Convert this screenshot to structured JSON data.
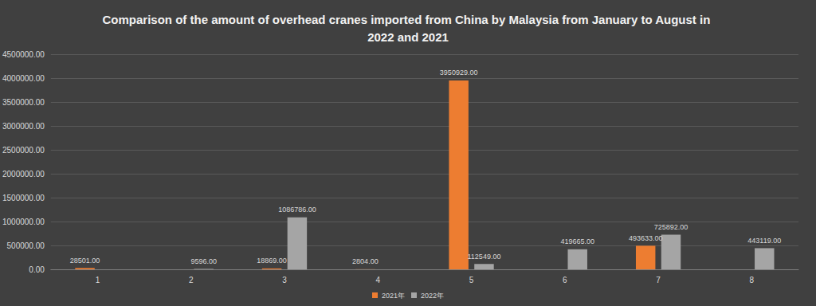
{
  "chart_data": {
    "type": "bar",
    "title": "Comparison of the amount of overhead cranes imported from China by Malaysia from January to August in 2022 and 2021",
    "categories": [
      "1",
      "2",
      "3",
      "4",
      "5",
      "6",
      "7",
      "8"
    ],
    "series": [
      {
        "name": "2021年",
        "color": "#ed7d31",
        "values": [
          28501,
          null,
          18869,
          2804,
          3950929,
          null,
          493633,
          null
        ],
        "value_labels": [
          "28501.00",
          null,
          "18869.00",
          "2804.00",
          "3950929.00",
          null,
          "493633.00",
          null
        ]
      },
      {
        "name": "2022年",
        "color": "#a5a5a5",
        "values": [
          null,
          9596,
          1086786,
          null,
          112549,
          419665,
          725892,
          443119
        ],
        "value_labels": [
          null,
          "9596.00",
          "1086786.00",
          null,
          "112549.00",
          "419665.00",
          "725892.00",
          "443119.00"
        ]
      }
    ],
    "ylim": [
      0,
      4500000
    ],
    "yticks": [
      {
        "value": 0,
        "label": "0.00"
      },
      {
        "value": 500000,
        "label": "500000.00"
      },
      {
        "value": 1000000,
        "label": "1000000.00"
      },
      {
        "value": 1500000,
        "label": "1500000.00"
      },
      {
        "value": 2000000,
        "label": "2000000.00"
      },
      {
        "value": 2500000,
        "label": "2500000.00"
      },
      {
        "value": 3000000,
        "label": "3000000.00"
      },
      {
        "value": 3500000,
        "label": "3500000.00"
      },
      {
        "value": 4000000,
        "label": "4000000.00"
      },
      {
        "value": 4500000,
        "label": "4500000.00"
      }
    ],
    "grid": true,
    "legend": "bottom",
    "data_labels": true
  }
}
